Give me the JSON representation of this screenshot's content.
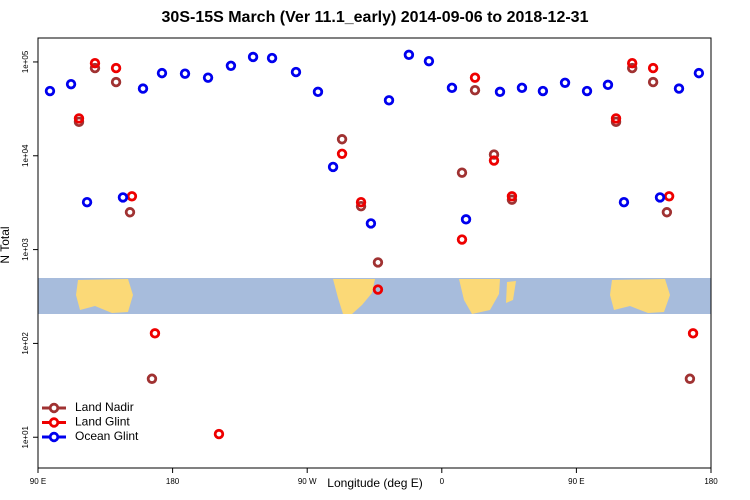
{
  "chart_data": {
    "type": "scatter",
    "title": "30S-15S March (Ver 11.1_early)   2014-09-06 to 2018-12-31",
    "x_label": "Longitude (deg E)",
    "y_label": "N Total",
    "log_y": true,
    "legend": "bottom-left",
    "xlim": [
      90,
      540
    ],
    "xticks": [
      {
        "value": 90,
        "label": "90 E"
      },
      180,
      {
        "value": 270,
        "label": "90 W"
      },
      {
        "value": 360,
        "label": "0"
      },
      {
        "value": 450,
        "label": "90 E"
      },
      {
        "value": 540,
        "label": "180"
      }
    ],
    "ylim": [
      4.7,
      180000
    ],
    "yticks": [
      {
        "value": 10,
        "label": "1e+01"
      },
      {
        "value": 100,
        "label": "1e+02"
      },
      {
        "value": 1000,
        "label": "1e+03"
      },
      {
        "value": 10000,
        "label": "1e+04"
      },
      {
        "value": 100000,
        "label": "1e+05"
      }
    ],
    "series": [
      {
        "name": "Land Nadir",
        "color": "#a03232",
        "x": [
          117.4,
          128.1,
          142.2,
          151.5,
          166.2,
          293.3,
          306.0,
          317.3,
          373.5,
          382.2,
          394.9,
          406.9,
          476.5,
          487.3,
          501.3,
          510.5,
          525.9
        ],
        "values": [
          23000,
          86000,
          61000,
          2500,
          42,
          15000,
          2900,
          730,
          6600,
          50000,
          10300,
          3400,
          23000,
          86000,
          61000,
          2500,
          42
        ]
      },
      {
        "name": "Land Glint",
        "color": "#ee0000",
        "x": [
          117.4,
          128.1,
          142.2,
          152.8,
          168.2,
          211.0,
          293.3,
          306.0,
          317.3,
          373.5,
          382.2,
          394.9,
          406.9,
          476.5,
          487.3,
          501.3,
          512.0,
          528.0
        ],
        "values": [
          25000,
          97000,
          86000,
          3700,
          128,
          10.8,
          10500,
          3200,
          375,
          1280,
          68000,
          8900,
          3700,
          25000,
          97000,
          86000,
          3700,
          128
        ]
      },
      {
        "name": "Ocean Glint",
        "color": "#0000ee",
        "x": [
          98.0,
          112.1,
          122.8,
          146.8,
          160.2,
          172.9,
          188.3,
          203.7,
          219.0,
          233.8,
          246.5,
          262.5,
          277.2,
          287.3,
          312.6,
          324.7,
          338.0,
          351.4,
          366.8,
          376.2,
          398.9,
          413.6,
          427.6,
          442.4,
          457.1,
          471.1,
          481.8,
          505.9,
          518.6,
          531.9
        ],
        "values": [
          49000,
          58000,
          3200,
          3600,
          52000,
          76000,
          75000,
          68000,
          91000,
          113000,
          110000,
          78000,
          48000,
          7600,
          1900,
          39000,
          119000,
          102000,
          53000,
          2100,
          48000,
          53000,
          49000,
          60000,
          49000,
          57000,
          3200,
          3600,
          52000,
          76000
        ]
      }
    ]
  }
}
